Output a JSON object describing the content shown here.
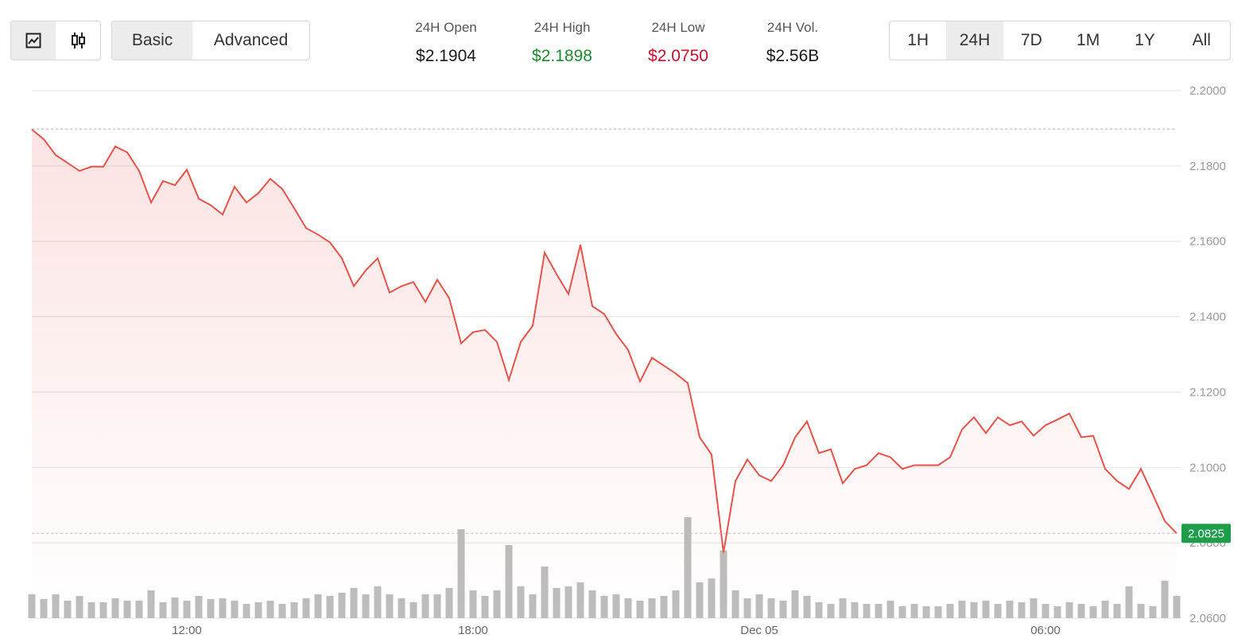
{
  "toolbar": {
    "view_modes": [
      "Basic",
      "Advanced"
    ],
    "active_view": 0,
    "stats": [
      {
        "label": "24H Open",
        "value": "$2.1904",
        "color": "#1a1a1a"
      },
      {
        "label": "24H High",
        "value": "$2.1898",
        "color": "#1e8a2f"
      },
      {
        "label": "24H Low",
        "value": "$2.0750",
        "color": "#c8102e"
      },
      {
        "label": "24H Vol.",
        "value": "$2.56B",
        "color": "#1a1a1a"
      }
    ],
    "ranges": [
      "1H",
      "24H",
      "7D",
      "1M",
      "1Y",
      "All"
    ],
    "active_range": 1
  },
  "chart_data": {
    "type": "line",
    "categories": [
      null,
      null,
      null,
      null,
      null,
      null,
      null,
      null,
      null,
      null,
      null,
      null,
      null,
      "12:00",
      null,
      null,
      null,
      null,
      null,
      null,
      null,
      null,
      null,
      null,
      null,
      null,
      null,
      null,
      null,
      null,
      null,
      null,
      null,
      null,
      null,
      null,
      null,
      "18:00",
      null,
      null,
      null,
      null,
      null,
      null,
      null,
      null,
      null,
      null,
      null,
      null,
      null,
      null,
      null,
      null,
      null,
      null,
      null,
      null,
      null,
      null,
      null,
      "Dec 05",
      null,
      null,
      null,
      null,
      null,
      null,
      null,
      null,
      null,
      null,
      null,
      null,
      null,
      null,
      null,
      null,
      null,
      null,
      null,
      null,
      null,
      null,
      null,
      "06:00",
      null,
      null,
      null,
      null,
      null,
      null,
      null,
      null,
      null,
      null,
      null
    ],
    "series": [
      {
        "color": "#e5534b",
        "values": [
          2.1897,
          2.1871,
          2.1829,
          2.1808,
          2.1787,
          2.1798,
          2.1798,
          2.1852,
          2.1836,
          2.1787,
          2.1703,
          2.176,
          2.1749,
          2.179,
          2.1713,
          2.1696,
          2.1671,
          2.1745,
          2.1703,
          2.1728,
          2.1766,
          2.1739,
          2.1688,
          2.1635,
          2.1618,
          2.1597,
          2.1555,
          2.1481,
          2.1523,
          2.1555,
          2.1464,
          2.1481,
          2.1492,
          2.1439,
          2.1498,
          2.1449,
          2.1329,
          2.1359,
          2.1365,
          2.1333,
          2.1232,
          2.1333,
          2.1376,
          2.157,
          2.1513,
          2.146,
          2.1591,
          2.1428,
          2.1407,
          2.1354,
          2.1312,
          2.1228,
          2.1291,
          2.127,
          2.1249,
          2.1224,
          2.108,
          2.1034,
          2.0774,
          2.0964,
          2.1021,
          2.0979,
          2.0964,
          2.1006,
          2.108,
          2.1122,
          2.1038,
          2.1048,
          2.0958,
          2.0996,
          2.1006,
          2.1038,
          2.1027,
          2.0996,
          2.1006,
          2.1006,
          2.1006,
          2.1027,
          2.1101,
          2.1133,
          2.1091,
          2.1133,
          2.1112,
          2.1122,
          2.1084,
          2.1112,
          2.1127,
          2.1143,
          2.108,
          2.1084,
          2.0996,
          2.0964,
          2.0943,
          2.0996,
          2.0928,
          2.0858,
          2.0825
        ]
      }
    ],
    "volume": {
      "color": "#bdbdbd",
      "values": [
        30,
        24,
        30,
        22,
        28,
        20,
        20,
        25,
        22,
        22,
        35,
        20,
        26,
        22,
        28,
        24,
        25,
        22,
        18,
        20,
        22,
        18,
        20,
        25,
        30,
        28,
        32,
        38,
        30,
        40,
        30,
        25,
        20,
        30,
        30,
        38,
        112,
        35,
        28,
        35,
        92,
        40,
        30,
        65,
        38,
        40,
        45,
        35,
        28,
        30,
        25,
        22,
        25,
        28,
        35,
        127,
        45,
        50,
        85,
        35,
        25,
        30,
        25,
        22,
        35,
        28,
        20,
        18,
        25,
        20,
        18,
        18,
        22,
        15,
        18,
        15,
        15,
        18,
        22,
        20,
        22,
        18,
        22,
        20,
        25,
        18,
        15,
        20,
        18,
        15,
        22,
        18,
        40,
        18,
        15,
        47,
        28
      ]
    },
    "reference_line": 2.1898,
    "ylim": [
      2.06,
      2.2
    ],
    "yticks": [
      {
        "value": 2.06,
        "label": "2.0600"
      },
      {
        "value": 2.08,
        "label": "2.0800"
      },
      {
        "value": 2.1,
        "label": "2.1000"
      },
      {
        "value": 2.12,
        "label": "2.1200"
      },
      {
        "value": 2.14,
        "label": "2.1400"
      },
      {
        "value": 2.16,
        "label": "2.1600"
      },
      {
        "value": 2.18,
        "label": "2.1800"
      },
      {
        "value": 2.2,
        "label": "2.2000"
      }
    ],
    "grid": true,
    "last_label_color": "#1e9e4a"
  }
}
